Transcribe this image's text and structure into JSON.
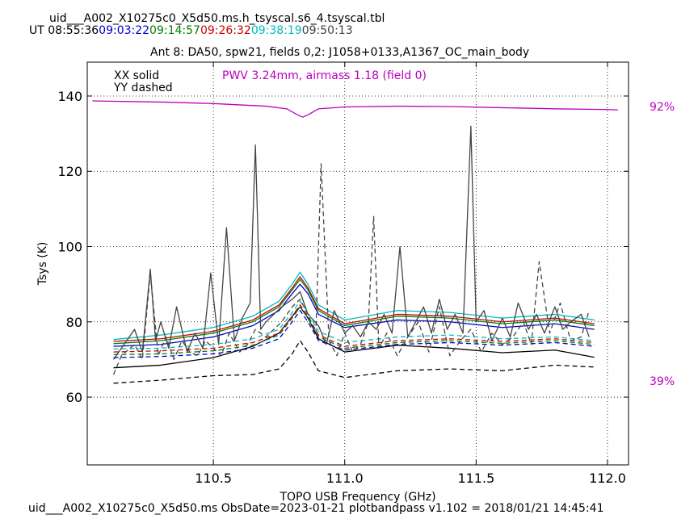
{
  "header": {
    "title": "uid___A002_X10275c0_X5d50.ms.h_tsyscal.s6_4.tsyscal.tbl",
    "ut_prefix": "UT",
    "ut_times": [
      {
        "text": "08:55:36",
        "color": "#000000"
      },
      {
        "text": "09:03:22",
        "color": "#0000cc"
      },
      {
        "text": "09:14:57",
        "color": "#008000"
      },
      {
        "text": "09:26:32",
        "color": "#cc0000"
      },
      {
        "text": "09:38:19",
        "color": "#00bbbb"
      },
      {
        "text": "09:50:13",
        "color": "#444444"
      }
    ],
    "subtitle": "Ant 8: DA50,  spw21,  fields 0,2: J1058+0133,A1367_OC_main_body"
  },
  "footer": {
    "text": "uid___A002_X10275c0_X5d50.ms  ObsDate=2023-01-21   plotbandpass v1.102 = 2018/01/21 14:45:41"
  },
  "chart_data": {
    "type": "line",
    "xlabel": "TOPO USB Frequency (GHz)",
    "ylabel": "Tsys (K)",
    "xlim": [
      110.02,
      112.08
    ],
    "ylim": [
      42,
      149
    ],
    "xticks": [
      110.5,
      111.0,
      111.5,
      112.0
    ],
    "xtick_labels": [
      "110.5",
      "111.0",
      "111.5",
      "112.0"
    ],
    "yticks": [
      60,
      80,
      100,
      120,
      140
    ],
    "ytick_labels": [
      "60",
      "80",
      "100",
      "120",
      "140"
    ],
    "grid": true,
    "legend": {
      "lines": [
        "XX solid",
        "YY dashed"
      ],
      "placement": "top-left"
    },
    "pwv_annotation": {
      "text": "PWV 3.24mm, airmass 1.18 (field 0)",
      "color": "#bb00bb"
    },
    "right_axis_labels": [
      {
        "text": "92%",
        "color": "#bb00bb"
      },
      {
        "text": "39%",
        "color": "#bb00bb"
      }
    ],
    "transmission_curve": {
      "color": "#bb00bb",
      "x": [
        110.04,
        110.3,
        110.5,
        110.7,
        110.78,
        110.82,
        110.84,
        110.86,
        110.9,
        111.0,
        111.2,
        111.4,
        111.6,
        111.8,
        112.0,
        112.04
      ],
      "y": [
        138.7,
        138.4,
        138.0,
        137.3,
        136.6,
        135.0,
        134.4,
        135.0,
        136.6,
        137.1,
        137.3,
        137.2,
        136.9,
        136.6,
        136.4,
        136.3
      ]
    },
    "series": [
      {
        "time": "09:38:19",
        "pol": "XX",
        "color": "#00bbbb",
        "dashed": false,
        "x": [
          110.12,
          110.3,
          110.5,
          110.65,
          110.75,
          110.8,
          110.83,
          110.86,
          110.9,
          111.0,
          111.2,
          111.4,
          111.6,
          111.8,
          111.95
        ],
        "y": [
          75.3,
          76.5,
          78.5,
          81.5,
          85.5,
          90.0,
          93.2,
          90.0,
          84.5,
          80.5,
          83.0,
          82.5,
          81.0,
          82.0,
          80.5
        ]
      },
      {
        "time": "09:26:32",
        "pol": "XX",
        "color": "#cc0000",
        "dashed": false,
        "x": [
          110.12,
          110.3,
          110.5,
          110.65,
          110.75,
          110.8,
          110.83,
          110.86,
          110.9,
          111.0,
          111.2,
          111.4,
          111.6,
          111.8,
          111.95
        ],
        "y": [
          74.8,
          75.5,
          77.5,
          80.5,
          84.5,
          89.0,
          92.0,
          89.0,
          83.5,
          79.5,
          82.0,
          81.5,
          80.0,
          81.0,
          79.5
        ]
      },
      {
        "time": "09:14:57",
        "pol": "XX",
        "color": "#008000",
        "dashed": false,
        "x": [
          110.12,
          110.3,
          110.5,
          110.65,
          110.75,
          110.8,
          110.83,
          110.86,
          110.9,
          111.0,
          111.2,
          111.4,
          111.6,
          111.8,
          111.95
        ],
        "y": [
          74.2,
          75.0,
          77.0,
          80.0,
          84.0,
          88.5,
          91.3,
          88.5,
          83.0,
          79.0,
          81.5,
          81.0,
          79.5,
          80.5,
          79.0
        ]
      },
      {
        "time": "09:03:22",
        "pol": "XX",
        "color": "#0000cc",
        "dashed": false,
        "x": [
          110.12,
          110.3,
          110.5,
          110.65,
          110.75,
          110.8,
          110.83,
          110.86,
          110.9,
          111.0,
          111.2,
          111.4,
          111.6,
          111.8,
          111.95
        ],
        "y": [
          73.5,
          74.0,
          76.0,
          79.0,
          83.0,
          87.5,
          90.0,
          87.5,
          82.0,
          78.5,
          80.5,
          80.0,
          78.5,
          79.5,
          78.0
        ]
      },
      {
        "time": "08:55:36",
        "pol": "XX",
        "color": "#000000",
        "dashed": false,
        "x": [
          110.12,
          110.3,
          110.5,
          110.65,
          110.75,
          110.8,
          110.83,
          110.86,
          110.9,
          111.0,
          111.2,
          111.4,
          111.6,
          111.8,
          111.95
        ],
        "y": [
          67.8,
          68.5,
          70.5,
          73.5,
          77.0,
          81.5,
          84.0,
          81.0,
          75.5,
          72.0,
          73.8,
          73.0,
          71.8,
          72.5,
          70.6
        ]
      },
      {
        "time": "09:50:13",
        "pol": "XX",
        "color": "#444444",
        "dashed": false,
        "x": [
          110.12,
          110.15,
          110.2,
          110.23,
          110.26,
          110.28,
          110.3,
          110.33,
          110.36,
          110.4,
          110.43,
          110.46,
          110.49,
          110.52,
          110.55,
          110.58,
          110.61,
          110.64,
          110.66,
          110.68,
          110.7,
          110.73,
          110.76,
          110.8,
          110.83,
          110.86,
          110.9,
          110.93,
          110.96,
          111.0,
          111.03,
          111.06,
          111.09,
          111.12,
          111.15,
          111.18,
          111.21,
          111.24,
          111.27,
          111.3,
          111.33,
          111.36,
          111.39,
          111.42,
          111.45,
          111.48,
          111.5,
          111.53,
          111.56,
          111.6,
          111.63,
          111.66,
          111.7,
          111.73,
          111.76,
          111.8,
          111.83,
          111.86,
          111.9,
          111.93
        ],
        "y": [
          70,
          73,
          78,
          72,
          94,
          75,
          80,
          73,
          84,
          72,
          77,
          73,
          93,
          74,
          105,
          75,
          81,
          85,
          127,
          78,
          80,
          82,
          84,
          86,
          88,
          82,
          79,
          74,
          83,
          77,
          79,
          76,
          80,
          78,
          82,
          77,
          100,
          76,
          80,
          84,
          77,
          86,
          78,
          82,
          77,
          132,
          80,
          83,
          75,
          81,
          76,
          85,
          78,
          82,
          77,
          84,
          78,
          80,
          82,
          76
        ]
      },
      {
        "time": "09:38:19",
        "pol": "YY",
        "color": "#00bbbb",
        "dashed": true,
        "x": [
          110.12,
          110.3,
          110.5,
          110.65,
          110.75,
          110.8,
          110.83,
          110.86,
          110.9,
          111.0,
          111.2,
          111.4,
          111.6,
          111.8,
          111.95
        ],
        "y": [
          72.8,
          73.0,
          74.0,
          75.5,
          78.0,
          82.5,
          85.5,
          82.5,
          77.5,
          74.5,
          76.0,
          76.5,
          75.5,
          76.0,
          75.0
        ]
      },
      {
        "time": "09:26:32",
        "pol": "YY",
        "color": "#cc0000",
        "dashed": true,
        "x": [
          110.12,
          110.3,
          110.5,
          110.65,
          110.75,
          110.8,
          110.83,
          110.86,
          110.9,
          111.0,
          111.2,
          111.4,
          111.6,
          111.8,
          111.95
        ],
        "y": [
          72.0,
          72.3,
          73.0,
          74.5,
          77.0,
          81.5,
          84.5,
          81.5,
          76.5,
          73.5,
          75.0,
          75.5,
          74.8,
          75.5,
          74.5
        ]
      },
      {
        "time": "09:14:57",
        "pol": "YY",
        "color": "#008000",
        "dashed": true,
        "x": [
          110.12,
          110.3,
          110.5,
          110.65,
          110.75,
          110.8,
          110.83,
          110.86,
          110.9,
          111.0,
          111.2,
          111.4,
          111.6,
          111.8,
          111.95
        ],
        "y": [
          71.3,
          71.5,
          72.3,
          73.8,
          76.5,
          81.0,
          84.0,
          81.0,
          76.0,
          73.0,
          74.5,
          75.0,
          74.3,
          75.0,
          74.0
        ]
      },
      {
        "time": "09:03:22",
        "pol": "YY",
        "color": "#0000cc",
        "dashed": true,
        "x": [
          110.12,
          110.3,
          110.5,
          110.65,
          110.75,
          110.8,
          110.83,
          110.86,
          110.9,
          111.0,
          111.2,
          111.4,
          111.6,
          111.8,
          111.95
        ],
        "y": [
          70.5,
          70.8,
          71.5,
          73.0,
          75.5,
          80.0,
          83.0,
          80.0,
          75.0,
          72.5,
          74.0,
          74.5,
          73.8,
          74.5,
          73.5
        ]
      },
      {
        "time": "08:55:36",
        "pol": "YY",
        "color": "#000000",
        "dashed": true,
        "x": [
          110.12,
          110.3,
          110.5,
          110.65,
          110.75,
          110.8,
          110.83,
          110.86,
          110.9,
          111.0,
          111.2,
          111.4,
          111.6,
          111.8,
          111.95
        ],
        "y": [
          63.7,
          64.5,
          65.7,
          66.0,
          67.5,
          71.5,
          75.0,
          72.0,
          67.0,
          65.2,
          67.0,
          67.5,
          67.0,
          68.5,
          68.0
        ]
      },
      {
        "time": "09:50:13",
        "pol": "YY",
        "color": "#444444",
        "dashed": true,
        "x": [
          110.12,
          110.15,
          110.2,
          110.23,
          110.26,
          110.29,
          110.32,
          110.35,
          110.38,
          110.41,
          110.44,
          110.47,
          110.5,
          110.53,
          110.56,
          110.6,
          110.63,
          110.66,
          110.7,
          110.73,
          110.76,
          110.8,
          110.83,
          110.86,
          110.89,
          110.91,
          110.94,
          110.97,
          111.0,
          111.03,
          111.06,
          111.09,
          111.11,
          111.13,
          111.16,
          111.2,
          111.24,
          111.28,
          111.32,
          111.36,
          111.4,
          111.44,
          111.48,
          111.52,
          111.56,
          111.6,
          111.64,
          111.68,
          111.71,
          111.74,
          111.78,
          111.82,
          111.86,
          111.9,
          111.93
        ],
        "y": [
          66,
          71,
          74,
          70,
          93,
          71,
          76,
          70,
          75,
          72,
          71,
          75,
          73,
          71,
          77,
          72,
          74,
          78,
          76,
          78,
          80,
          84,
          86,
          82,
          77,
          122,
          75,
          71,
          77,
          72,
          74,
          80,
          108,
          73,
          77,
          71,
          76,
          80,
          72,
          84,
          71,
          75,
          78,
          72,
          77,
          74,
          76,
          80,
          74,
          96,
          77,
          85,
          75,
          76,
          83
        ]
      }
    ]
  }
}
